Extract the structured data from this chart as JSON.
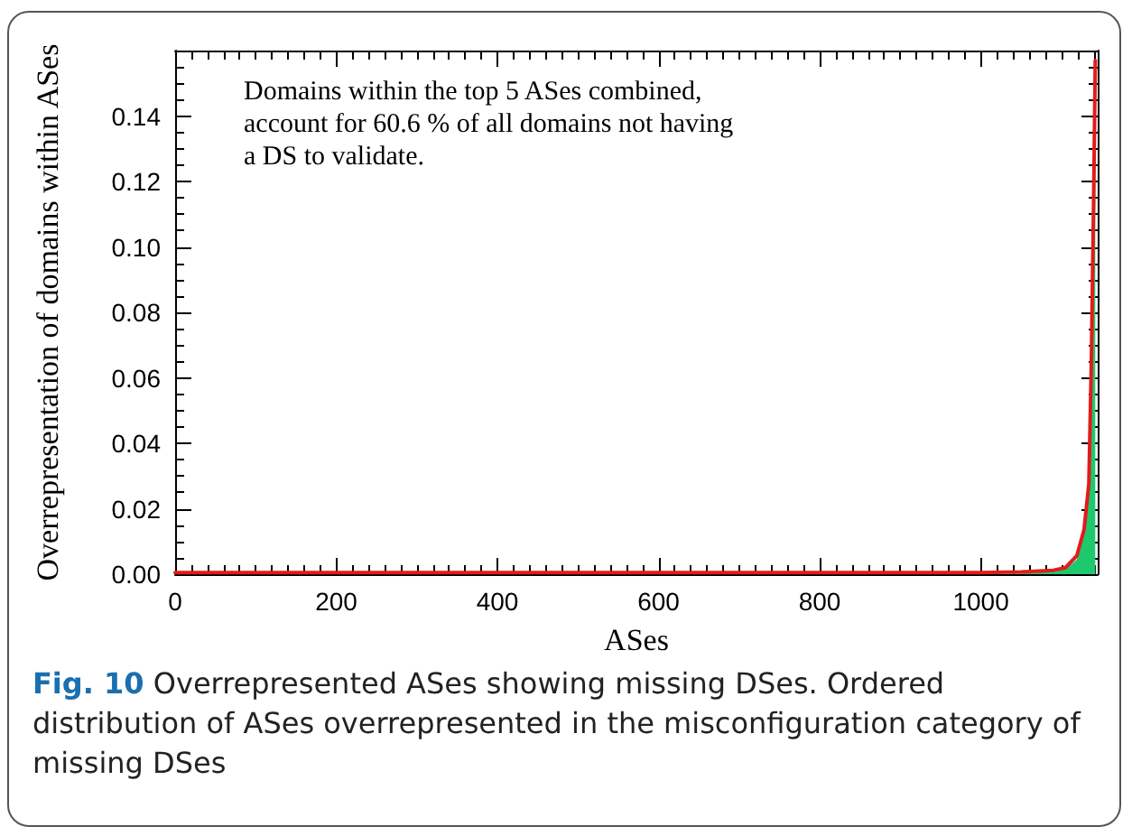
{
  "chart_data": {
    "type": "area",
    "xlabel": "ASes",
    "ylabel": "Overrepresentation of domains within ASes",
    "x": [
      0,
      500,
      1000,
      1050,
      1090,
      1105,
      1119,
      1128,
      1134,
      1137,
      1140,
      1142
    ],
    "series": [
      {
        "color": "#1ec96e",
        "values": [
          0,
          0,
          0,
          0.0002,
          0.0008,
          0.0015,
          0.0045,
          0.012,
          0.026,
          0.06,
          0.112,
          0.155
        ]
      },
      {
        "type": "line",
        "color": "#e31a1c",
        "values": [
          0.0005,
          0.0005,
          0.0005,
          0.0007,
          0.0012,
          0.002,
          0.0056,
          0.0135,
          0.0275,
          0.063,
          0.115,
          0.157
        ]
      }
    ],
    "xlim": [
      0,
      1145
    ],
    "xticks": [
      0,
      200,
      400,
      600,
      800,
      1000
    ],
    "ylim": [
      0,
      0.16
    ],
    "yticks": [
      {
        "value": 0,
        "label": "0.00"
      },
      {
        "value": 0.02,
        "label": "0.02"
      },
      {
        "value": 0.04,
        "label": "0.04"
      },
      {
        "value": 0.06,
        "label": "0.06"
      },
      {
        "value": 0.08,
        "label": "0.08"
      },
      {
        "value": 0.1,
        "label": "0.10"
      },
      {
        "value": 0.12,
        "label": "0.12"
      },
      {
        "value": 0.14,
        "label": "0.14"
      }
    ],
    "grid": false,
    "marker": "none",
    "annotations": [
      "Domains within the top 5 ASes combined,\naccount for 60.6 % of all domains not having\na DS to validate.",
      "Fig. 10",
      "Overrepresented ASes showing missing DSes. Ordered distribution of ASes overrepresented in the misconfiguration category of missing DSes"
    ]
  }
}
